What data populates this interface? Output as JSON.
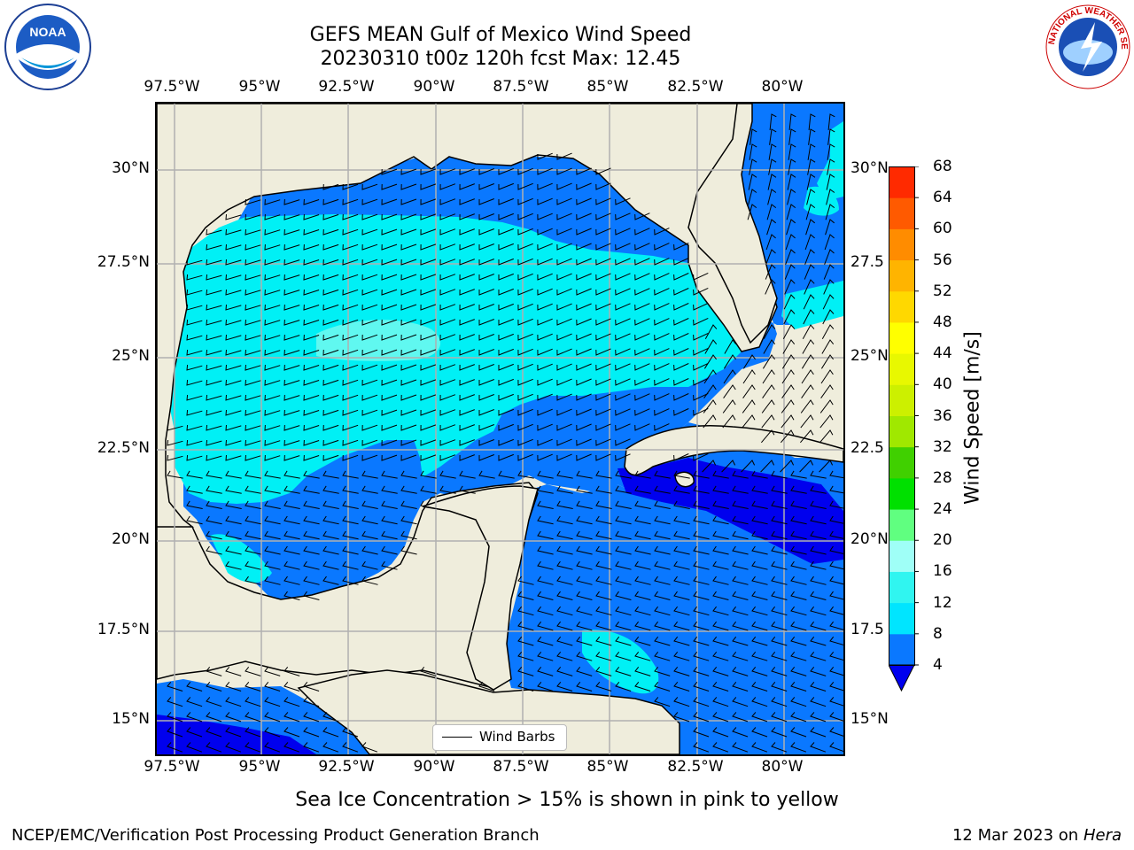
{
  "title_line1": "GEFS MEAN Gulf of Mexico Wind Speed",
  "title_line2": "20230310 t00z 120h fcst   Max: 12.45",
  "lon_ticks": [
    "97.5°W",
    "95°W",
    "92.5°W",
    "90°W",
    "87.5°W",
    "85°W",
    "82.5°W",
    "80°W"
  ],
  "lat_ticks_left": [
    "30°N",
    "27.5°N",
    "25°N",
    "22.5°N",
    "20°N",
    "17.5°N",
    "15°N"
  ],
  "lat_ticks_right": [
    "30°N",
    "27.5",
    "25°N",
    "22.5",
    "20°N",
    "17.5",
    "15°N"
  ],
  "map_extent": {
    "lon_min": -98,
    "lon_max": -78.3,
    "lat_min": 14,
    "lat_max": 31.7
  },
  "legend": {
    "label": "Wind Barbs"
  },
  "colorbar": {
    "title": "Wind Speed [m/s]",
    "levels": [
      "4",
      "8",
      "12",
      "16",
      "20",
      "24",
      "28",
      "32",
      "36",
      "40",
      "44",
      "48",
      "52",
      "56",
      "60",
      "64",
      "68"
    ],
    "colors": [
      "#0a78ff",
      "#00e5ff",
      "#30f5f0",
      "#9ffff7",
      "#60ff80",
      "#00e000",
      "#40d000",
      "#a0e800",
      "#ccf000",
      "#e8f800",
      "#ffff00",
      "#ffd800",
      "#ffb400",
      "#ff8c00",
      "#ff5a00",
      "#ff2a00"
    ],
    "under_color": "#0000ee"
  },
  "note": "Sea Ice Concentration > 15% is shown in pink to yellow",
  "footer_left": "NCEP/EMC/Verification Post Processing Product Generation Branch",
  "footer_date": "12 Mar 2023 on",
  "footer_host": "Hera",
  "colors": {
    "land": "#efeddc",
    "speed_4_8": "#0a78ff",
    "speed_8_12": "#00f0f5",
    "speed_12_16": "#60f8f0",
    "speed_lt4": "#0000ee",
    "grid": "#b0b0b0"
  },
  "logos": {
    "noaa": "NOAA",
    "nws": "NATIONAL WEATHER SERVICE"
  }
}
